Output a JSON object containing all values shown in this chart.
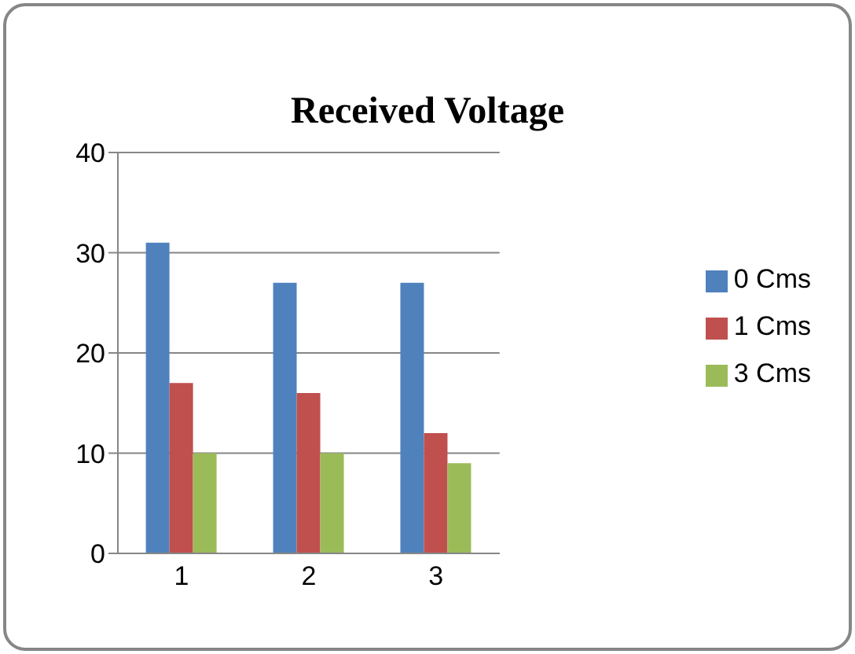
{
  "chart_data": {
    "type": "bar",
    "title": "Received Voltage",
    "categories": [
      "1",
      "2",
      "3"
    ],
    "series": [
      {
        "name": "0 Cms",
        "color": "#4f81bd",
        "values": [
          31,
          27,
          27
        ]
      },
      {
        "name": "1 Cms",
        "color": "#c0504d",
        "values": [
          17,
          16,
          12
        ]
      },
      {
        "name": "3 Cms",
        "color": "#9bbb59",
        "values": [
          10,
          10,
          9
        ]
      }
    ],
    "ylim": [
      0,
      40
    ],
    "yticks": [
      0,
      10,
      20,
      30,
      40
    ],
    "grid": "y",
    "legend": "right"
  }
}
